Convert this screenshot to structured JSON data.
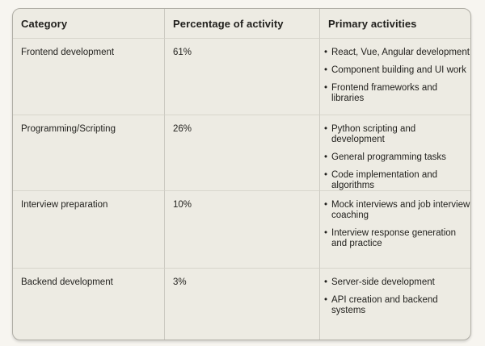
{
  "table": {
    "headers": [
      "Category",
      "Percentage of activity",
      "Primary activities"
    ],
    "rows": [
      {
        "category": "Frontend development",
        "percentage": "61%",
        "activities": [
          "React, Vue, Angular development",
          "Component building and UI work",
          "Frontend frameworks and libraries"
        ]
      },
      {
        "category": "Programming/Scripting",
        "percentage": "26%",
        "activities": [
          "Python scripting and development",
          "General programming tasks",
          "Code implementation and algorithms"
        ]
      },
      {
        "category": "Interview preparation",
        "percentage": "10%",
        "activities": [
          "Mock interviews and job interview coaching",
          "Interview response generation and practice"
        ]
      },
      {
        "category": "Backend development",
        "percentage": "3%",
        "activities": [
          "Server-side development",
          "API creation and backend systems"
        ]
      }
    ]
  },
  "glyphs": {
    "bullet": "•"
  },
  "colors": {
    "page_bg": "#f7f5f0",
    "card_bg": "#edebe3",
    "card_border": "#b0aea6",
    "divider_horizontal": "#d7d5cc",
    "divider_vertical": "#cccac2",
    "text": "#201f1c"
  }
}
